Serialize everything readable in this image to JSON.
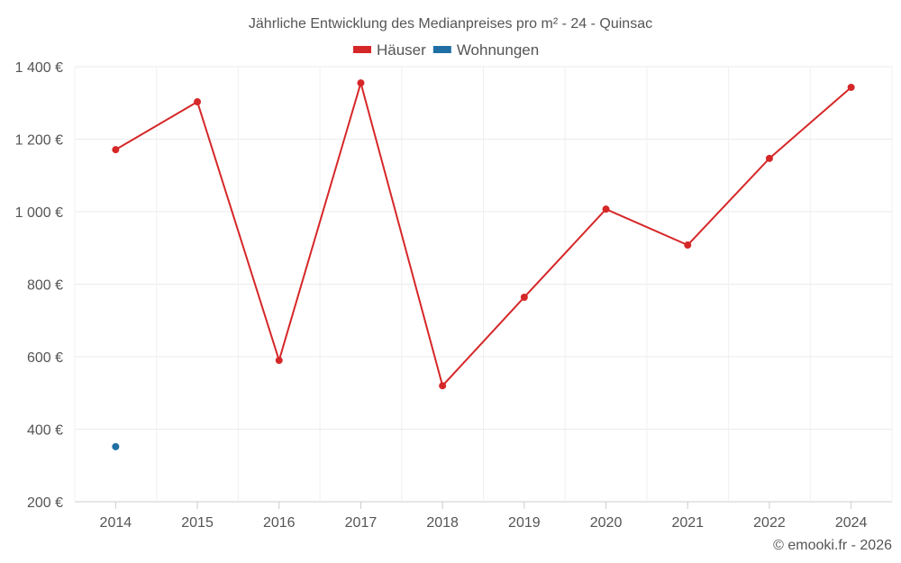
{
  "chart_data": {
    "type": "line",
    "title": "Jährliche Entwicklung des Medianpreises pro m² - 24 - Quinsac",
    "categories": [
      "2014",
      "2015",
      "2016",
      "2017",
      "2018",
      "2019",
      "2020",
      "2021",
      "2022",
      "2024"
    ],
    "series": [
      {
        "name": "Häuser",
        "color": "#d62728",
        "values": [
          1171,
          1303,
          590,
          1355,
          520,
          764,
          1007,
          908,
          1147,
          1343
        ]
      },
      {
        "name": "Wohnungen",
        "color": "#1f6fa5",
        "values": [
          352,
          null,
          null,
          null,
          null,
          null,
          null,
          null,
          null,
          null
        ]
      }
    ],
    "yticks": [
      "200 €",
      "400 €",
      "600 €",
      "800 €",
      "1 000 €",
      "1 200 €",
      "1 400 €"
    ],
    "ylim": [
      200,
      1400
    ],
    "grid": true,
    "legend": "top-center",
    "credit": "© emooki.fr - 2026"
  }
}
